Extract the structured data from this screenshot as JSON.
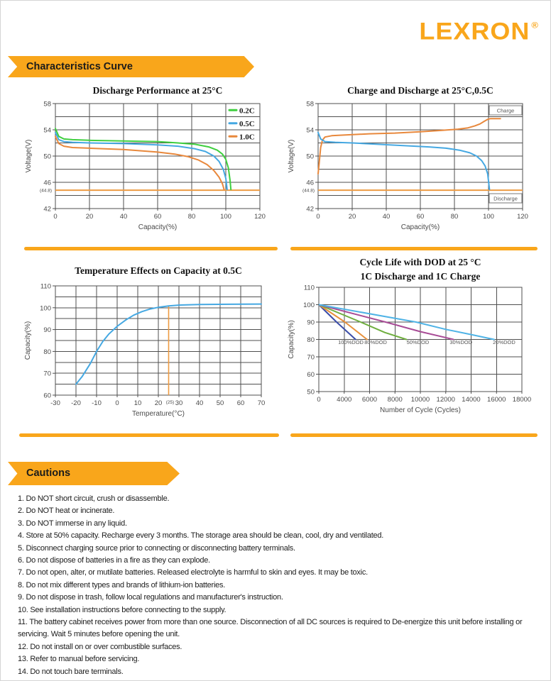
{
  "brand": {
    "name": "LEXRON",
    "registered_mark": "®"
  },
  "sections": {
    "characteristics": "Characteristics Curve",
    "cautions": "Cautions"
  },
  "colors": {
    "brand_orange": "#F9A61B",
    "grid": "#4f4f4f",
    "curve_green": "#3fcf3f",
    "curve_blue": "#45a8e2",
    "curve_orange": "#e8883c",
    "limit_line_orange": "#ed9b43",
    "dod_navy": "#3b4da8",
    "dod_orange": "#e8913c",
    "dod_green": "#6fae3f",
    "dod_purple": "#a84c96",
    "dod_cyan": "#4fb3e6"
  },
  "chart_data": [
    {
      "type": "line",
      "title": "Discharge Performance at 25°C",
      "xlabel": "Capacity(%)",
      "ylabel": "Voltage(V)",
      "xlim": [
        0,
        120
      ],
      "ylim": [
        42,
        58
      ],
      "x_grid": 20,
      "y_grid": 2,
      "xticks": [
        0,
        20,
        40,
        60,
        80,
        100,
        120
      ],
      "yticks": [
        58,
        54,
        50,
        46,
        42
      ],
      "extra_ytick": {
        "value": 44.8,
        "label": "(44.8)"
      },
      "hline": {
        "y": 44.8,
        "color": "#ed9b43"
      },
      "legend": {
        "position": "top-right",
        "entries": [
          {
            "label": "0.2C",
            "color": "#3fcf3f"
          },
          {
            "label": "0.5C",
            "color": "#45a8e2"
          },
          {
            "label": "1.0C",
            "color": "#e8883c"
          }
        ]
      },
      "series": [
        {
          "name": "0.2C",
          "color": "#3fcf3f",
          "points": [
            [
              0,
              54.2
            ],
            [
              2,
              53.0
            ],
            [
              5,
              52.6
            ],
            [
              10,
              52.5
            ],
            [
              20,
              52.4
            ],
            [
              40,
              52.3
            ],
            [
              60,
              52.2
            ],
            [
              72,
              52.0
            ],
            [
              82,
              51.8
            ],
            [
              90,
              51.4
            ],
            [
              95,
              50.9
            ],
            [
              98,
              50.3
            ],
            [
              100,
              49.5
            ],
            [
              101.5,
              48.2
            ],
            [
              102.5,
              46.3
            ],
            [
              103,
              44.9
            ]
          ]
        },
        {
          "name": "0.5C",
          "color": "#45a8e2",
          "points": [
            [
              0,
              53.6
            ],
            [
              2,
              52.5
            ],
            [
              5,
              52.2
            ],
            [
              10,
              52.1
            ],
            [
              20,
              52.0
            ],
            [
              40,
              51.9
            ],
            [
              60,
              51.7
            ],
            [
              72,
              51.5
            ],
            [
              82,
              51.1
            ],
            [
              88,
              50.7
            ],
            [
              93,
              50.0
            ],
            [
              96,
              49.2
            ],
            [
              98.5,
              48.0
            ],
            [
              100,
              46.6
            ],
            [
              100.8,
              44.9
            ]
          ]
        },
        {
          "name": "1.0C",
          "color": "#e8883c",
          "points": [
            [
              0,
              53.0
            ],
            [
              2,
              51.9
            ],
            [
              5,
              51.5
            ],
            [
              10,
              51.3
            ],
            [
              20,
              51.2
            ],
            [
              40,
              51.0
            ],
            [
              60,
              50.6
            ],
            [
              70,
              50.3
            ],
            [
              78,
              49.9
            ],
            [
              84,
              49.4
            ],
            [
              89,
              48.7
            ],
            [
              93,
              47.8
            ],
            [
              96,
              46.8
            ],
            [
              98,
              45.8
            ],
            [
              99,
              44.9
            ]
          ]
        }
      ]
    },
    {
      "type": "line",
      "title": "Charge and Discharge at 25°C,0.5C",
      "xlabel": "Capacity(%)",
      "ylabel": "Voltage(V)",
      "xlim": [
        0,
        120
      ],
      "ylim": [
        42,
        58
      ],
      "x_grid": 20,
      "y_grid": 2,
      "xticks": [
        0,
        20,
        40,
        60,
        80,
        100,
        120
      ],
      "yticks": [
        58,
        54,
        50,
        46,
        42
      ],
      "extra_ytick": {
        "value": 44.8,
        "label": "(44.8)"
      },
      "hline": {
        "y": 44.8,
        "color": "#ed9b43"
      },
      "boxed_labels": [
        {
          "text": "Charge",
          "x": 110,
          "y": 57
        },
        {
          "text": "Discharge",
          "x": 110,
          "y": 43.55
        }
      ],
      "series": [
        {
          "name": "Charge",
          "color": "#e8883c",
          "points": [
            [
              0,
              47.3
            ],
            [
              0.6,
              48.8
            ],
            [
              1.5,
              51.3
            ],
            [
              2.5,
              52.4
            ],
            [
              4,
              52.9
            ],
            [
              8,
              53.1
            ],
            [
              15,
              53.2
            ],
            [
              30,
              53.4
            ],
            [
              45,
              53.5
            ],
            [
              60,
              53.7
            ],
            [
              72,
              53.9
            ],
            [
              82,
              54.1
            ],
            [
              88,
              54.3
            ],
            [
              92,
              54.6
            ],
            [
              95,
              54.9
            ],
            [
              97.5,
              55.3
            ],
            [
              99.5,
              55.6
            ],
            [
              101,
              55.7
            ],
            [
              107,
              55.7
            ]
          ]
        },
        {
          "name": "Discharge",
          "color": "#45a8e2",
          "points": [
            [
              0,
              53.6
            ],
            [
              1.5,
              52.6
            ],
            [
              4,
              52.2
            ],
            [
              10,
              52.1
            ],
            [
              20,
              52.0
            ],
            [
              35,
              51.8
            ],
            [
              50,
              51.6
            ],
            [
              65,
              51.4
            ],
            [
              75,
              51.2
            ],
            [
              83,
              50.9
            ],
            [
              89,
              50.5
            ],
            [
              93,
              50.0
            ],
            [
              96,
              49.3
            ],
            [
              98,
              48.5
            ],
            [
              99.5,
              47.3
            ],
            [
              100.6,
              44.9
            ]
          ]
        }
      ]
    },
    {
      "type": "line",
      "title": "Temperature Effects on Capacity at 0.5C",
      "xlabel": "Temperature(°C)",
      "ylabel": "Capacity(%)",
      "xlim": [
        -30,
        70
      ],
      "ylim": [
        60,
        110
      ],
      "x_grid": 10,
      "y_grid": 5,
      "xticks": [
        -30,
        -20,
        -10,
        0,
        10,
        20,
        30,
        40,
        50,
        60,
        70
      ],
      "yticks": [
        110,
        100,
        90,
        80,
        70,
        60
      ],
      "vline": {
        "x": 25,
        "y_from": 60,
        "y_to": 100.7,
        "color": "#ed9b43",
        "tick_label": "(25)"
      },
      "series": [
        {
          "name": "0.5C capacity",
          "color": "#45a8e2",
          "points": [
            [
              -20,
              65
            ],
            [
              -17,
              68.5
            ],
            [
              -13,
              74.5
            ],
            [
              -10,
              80
            ],
            [
              -7,
              84.5
            ],
            [
              -4,
              88
            ],
            [
              0,
              91.5
            ],
            [
              4,
              94.3
            ],
            [
              8,
              96.6
            ],
            [
              12,
              98.2
            ],
            [
              16,
              99.4
            ],
            [
              20,
              100.2
            ],
            [
              25,
              100.8
            ],
            [
              30,
              101.2
            ],
            [
              40,
              101.5
            ],
            [
              55,
              101.6
            ],
            [
              70,
              101.7
            ]
          ]
        }
      ]
    },
    {
      "type": "line",
      "title_lines": [
        "Cycle Life with DOD at 25 °C",
        "1C Discharge and 1C Charge"
      ],
      "xlabel": "Number of Cycle (Cycles)",
      "ylabel": "Capacity(%)",
      "ylim": [
        50,
        110
      ],
      "y_grid": 10,
      "x_piecewise": true,
      "xticks": [
        0,
        4000,
        6000,
        8000,
        10000,
        12000,
        14000,
        16000,
        18000
      ],
      "yticks": [
        110,
        100,
        90,
        80,
        70,
        60,
        50
      ],
      "text_labels": [
        {
          "text": "100%DOD",
          "x": 4520,
          "y": 77.3
        },
        {
          "text": "80%DOD",
          "x": 6480,
          "y": 77.3
        },
        {
          "text": "50%DOD",
          "x": 9800,
          "y": 77.3
        },
        {
          "text": "30%DOD",
          "x": 13200,
          "y": 77.3
        },
        {
          "text": "20%DOD",
          "x": 16600,
          "y": 77.3
        }
      ],
      "series": [
        {
          "name": "100%DOD",
          "color": "#3b4da8",
          "points": [
            [
              0,
              100
            ],
            [
              2800,
              90
            ],
            [
              4900,
              80
            ]
          ]
        },
        {
          "name": "80%DOD",
          "color": "#e8913c",
          "points": [
            [
              0,
              100
            ],
            [
              4060,
              90
            ],
            [
              5800,
              80
            ]
          ]
        },
        {
          "name": "50%DOD",
          "color": "#6fae3f",
          "points": [
            [
              0,
              100
            ],
            [
              5300,
              90
            ],
            [
              7200,
              84
            ],
            [
              8900,
              80
            ]
          ]
        },
        {
          "name": "30%DOD",
          "color": "#a84c96",
          "points": [
            [
              0,
              100
            ],
            [
              7260,
              90
            ],
            [
              10000,
              84.5
            ],
            [
              12600,
              80
            ]
          ]
        },
        {
          "name": "20%DOD",
          "color": "#4fb3e6",
          "points": [
            [
              0,
              100
            ],
            [
              9660,
              90
            ],
            [
              12000,
              85.8
            ],
            [
              14000,
              82.8
            ],
            [
              15800,
              80
            ]
          ]
        }
      ]
    }
  ],
  "cautions_list": [
    "1. Do NOT short circuit, crush or disassemble.",
    "2. Do NOT heat or incinerate.",
    "3. Do NOT immerse in any liquid.",
    "4. Store at 50% capacity. Recharge every 3 months. The storage area should be clean, cool, dry and ventilated.",
    "5. Disconnect charging source prior to connecting or disconnecting battery terminals.",
    "6. Do not dispose of batteries in a fire as they can explode.",
    "7. Do not open, alter, or mutilate batteries. Released electrolyte is harmful to skin and eyes. It may be toxic.",
    "8. Do not mix different types and brands of lithium-ion batteries.",
    "9. Do not dispose in trash, follow local regulations and manufacturer's instruction.",
    "10. See installation instructions before connecting to the supply.",
    "11. The battery cabinet receives power from more than one source. Disconnection of all DC sources is required to De-energize this unit before installing or servicing. Wait 5 minutes before opening the unit.",
    "12. Do not install on or over combustible surfaces.",
    "13. Refer to manual before servicing.",
    "14. Do not touch bare terminals."
  ]
}
